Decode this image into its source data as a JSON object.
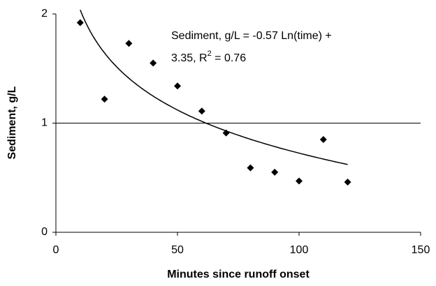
{
  "chart_data": {
    "type": "scatter",
    "x_label": "Minutes since runoff onset",
    "y_label": "Sediment, g/L",
    "x": [
      10,
      20,
      30,
      40,
      50,
      60,
      70,
      80,
      90,
      100,
      110,
      120
    ],
    "series": [
      {
        "color": "#000000",
        "values": [
          1.92,
          1.22,
          1.73,
          1.55,
          1.34,
          1.11,
          0.91,
          0.59,
          0.55,
          0.47,
          0.85,
          0.46
        ]
      }
    ],
    "xlim": [
      0,
      150
    ],
    "xticks": [
      0,
      50,
      100,
      150
    ],
    "ylim": [
      0,
      2
    ],
    "yticks": [
      0,
      1,
      2
    ],
    "grid": true,
    "trendline": {
      "type": "log",
      "slope": -0.57,
      "intercept": 3.35
    },
    "annotation": {
      "line1": "Sediment, g/L = -0.57 Ln(time) +",
      "line2": "3.35, R",
      "superscript": "2",
      "line2_end": " = 0.76"
    }
  }
}
